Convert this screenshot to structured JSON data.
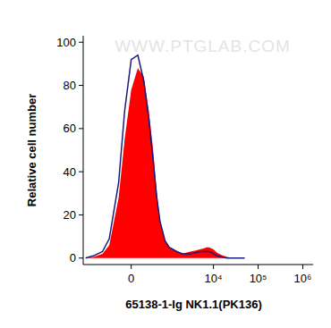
{
  "chart_data": {
    "type": "line",
    "x_label": "65138-1-Ig NK1.1(PK136)",
    "y_label": "Relative cell number",
    "annotation": "WWW.PTGLAB.COM",
    "x": [
      -1500,
      -1000,
      -600,
      -400,
      -200,
      -100,
      0,
      100,
      200,
      300,
      400,
      500,
      600,
      800,
      1000,
      1500,
      2000,
      3000,
      4000,
      5000,
      6000,
      7000,
      8000,
      10000,
      12000,
      15000,
      20000,
      30000,
      50000
    ],
    "series": [
      {
        "type": "area",
        "color": "#ff0000",
        "values": [
          0,
          0.5,
          2,
          6,
          28,
          55,
          78,
          88,
          84,
          68,
          50,
          30,
          18,
          8,
          5,
          3,
          2,
          3,
          3.5,
          4,
          4.5,
          5,
          5,
          4,
          2.5,
          1.5,
          0.5,
          0,
          0
        ]
      },
      {
        "type": "line",
        "color": "#1a1a7a",
        "values": [
          0,
          1,
          3,
          9,
          35,
          68,
          92,
          94,
          82,
          64,
          45,
          28,
          17,
          8,
          5,
          3,
          2,
          2,
          2.5,
          3,
          3,
          3,
          3,
          2,
          1,
          0.5,
          0,
          0,
          0
        ]
      }
    ],
    "xlim": [
      -1700,
      1700000
    ],
    "xticks": [
      0,
      {
        "value": 10000,
        "label": "10⁴"
      },
      {
        "value": 100000,
        "label": "10⁵"
      },
      {
        "value": 1000000,
        "label": "10⁶"
      }
    ],
    "ylim": [
      -3,
      103
    ],
    "yticks": [
      0,
      20,
      40,
      60,
      80,
      100
    ],
    "grid": false
  }
}
